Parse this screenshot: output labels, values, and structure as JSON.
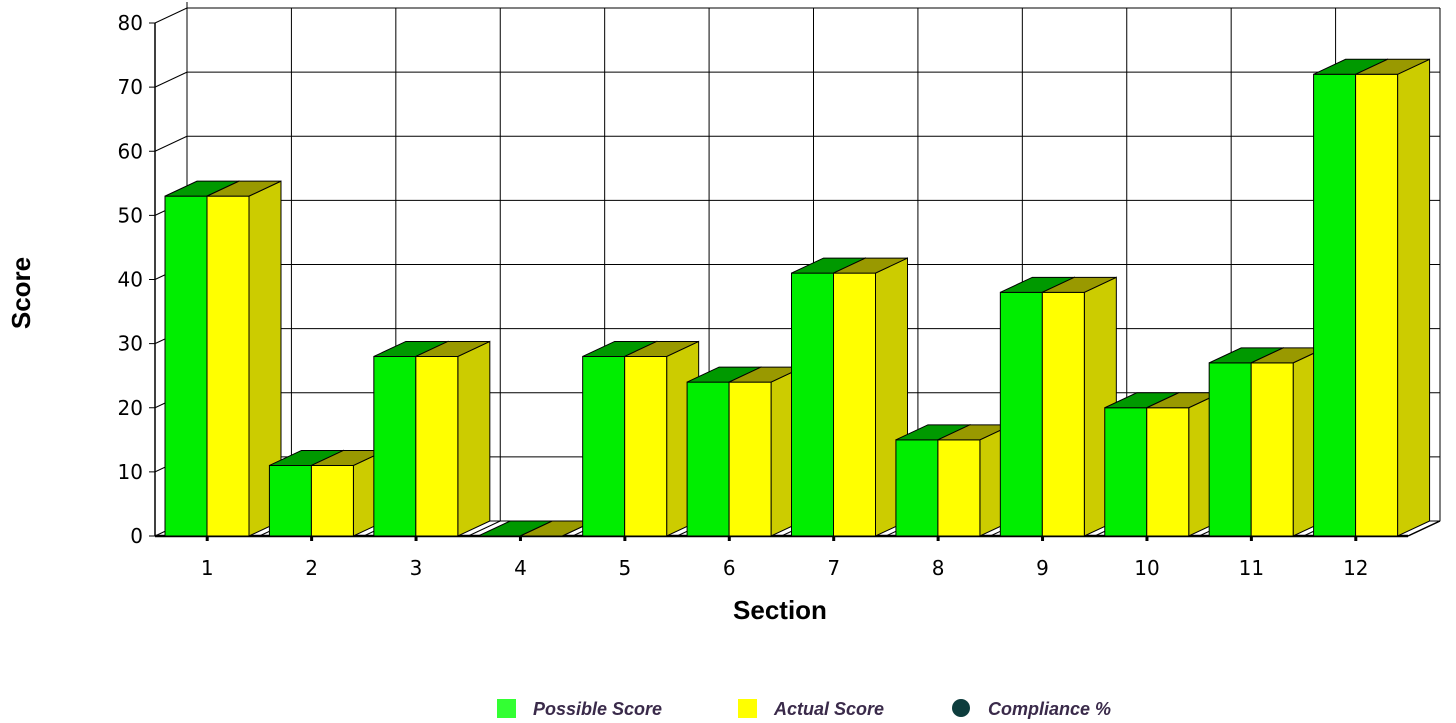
{
  "chart_data": {
    "type": "bar",
    "title": "",
    "xlabel": "Section",
    "ylabel": "Score",
    "ylim": [
      0,
      80
    ],
    "yticks": [
      0,
      10,
      20,
      30,
      40,
      50,
      60,
      70,
      80
    ],
    "grid": true,
    "three_d": true,
    "legend_position": "bottom",
    "categories": [
      "1",
      "2",
      "3",
      "4",
      "5",
      "6",
      "7",
      "8",
      "9",
      "10",
      "11",
      "12"
    ],
    "series": [
      {
        "name": "Possible Score",
        "color": "#00ee00",
        "values": [
          53,
          11,
          28,
          0,
          28,
          24,
          41,
          15,
          38,
          20,
          27,
          72
        ]
      },
      {
        "name": "Actual Score",
        "color": "#ffff00",
        "values": [
          53,
          11,
          28,
          0,
          28,
          24,
          41,
          15,
          38,
          20,
          27,
          72
        ]
      }
    ],
    "legend": [
      {
        "label": "Possible Score",
        "marker": "square",
        "color": "#33ff33"
      },
      {
        "label": "Actual Score",
        "marker": "square",
        "color": "#ffff00"
      },
      {
        "label": "Compliance %",
        "marker": "circle",
        "color": "#0d3d3d"
      }
    ]
  }
}
